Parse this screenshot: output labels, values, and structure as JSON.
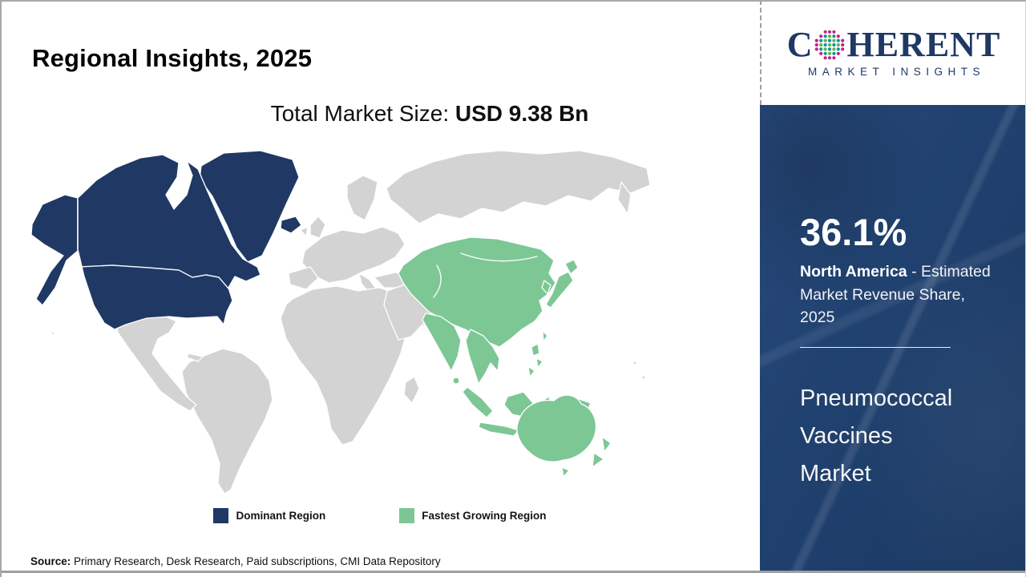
{
  "header": {
    "title": "Regional Insights, 2025"
  },
  "subtitle": {
    "prefix": "Total Market Size: ",
    "value": "USD 9.38 Bn"
  },
  "logo": {
    "name": "Coherent Market Insights",
    "word_prefix": "C",
    "word_suffix": "HERENT",
    "tagline": "MARKET INSIGHTS",
    "globe_palette": {
      "outer": "#c22384",
      "mid": "#12919b",
      "inner": "#57b947"
    }
  },
  "panel": {
    "share_value": "36.1%",
    "share_region": "North America",
    "share_desc_rest": " - Estimated Market Revenue Share, 2025",
    "market_lines": [
      "Pneumococcal",
      "Vaccines",
      "Market"
    ]
  },
  "legend": {
    "items": [
      {
        "label": "Dominant Region",
        "color": "#1f3864"
      },
      {
        "label": "Fastest Growing Region",
        "color": "#7dc795"
      }
    ]
  },
  "source": {
    "label": "Source:",
    "text": " Primary Research, Desk Research, Paid subscriptions, CMI Data Repository"
  },
  "colors": {
    "dominant": "#1f3864",
    "growing": "#7dc795",
    "other": "#d3d3d3",
    "panel": "#20416f",
    "logo-navy": "#1f3864"
  },
  "chart_data": {
    "type": "choropleth_map",
    "title": "Regional Insights, 2025",
    "subtitle": "Total Market Size: USD 9.38 Bn",
    "total_market_size_usd_bn": 9.38,
    "market": "Pneumococcal Vaccines Market",
    "legend": [
      "Dominant Region",
      "Fastest Growing Region"
    ],
    "legend_position": "bottom-center",
    "regions": [
      {
        "name": "North America",
        "role": "Dominant Region",
        "estimated_market_revenue_share_2025_pct": 36.1,
        "color": "#1f3864"
      },
      {
        "name": "Asia Pacific",
        "role": "Fastest Growing Region",
        "color": "#7dc795"
      },
      {
        "name": "Rest of World",
        "role": "Unhighlighted",
        "color": "#d3d3d3"
      }
    ]
  }
}
